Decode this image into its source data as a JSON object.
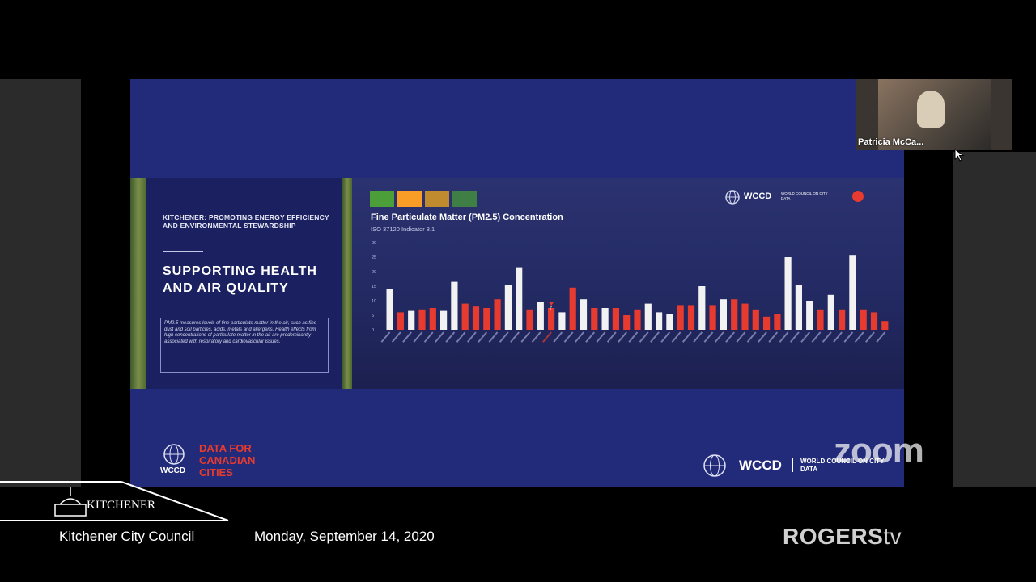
{
  "slide": {
    "kicker": "KITCHENER: PROMOTING ENERGY EFFICIENCY AND ENVIRONMENTAL STEWARDSHIP",
    "headline": "SUPPORTING HEALTH AND AIR QUALITY",
    "description": "PM2.5 measures levels of fine particulate matter in the air, such as fine dust and soil particles, acids, metals and allergens. Health effects from high concentrations of particulate matter in the air are predominantly associated with respiratory and cardiovascular issues.",
    "footer_left_brand": "WCCD",
    "footer_left_title": "DATA FOR CANADIAN CITIES",
    "footer_right_brand": "WCCD",
    "footer_right_title": "WORLD COUNCIL ON CITY DATA",
    "top_right_brand": "WCCD",
    "top_right_title": "WORLD COUNCIL ON CITY DATA",
    "sdg_icons": [
      "sdg-3-icon",
      "sdg-11-icon",
      "sdg-12-icon",
      "sdg-13-icon"
    ]
  },
  "chart_data": {
    "type": "bar",
    "title": "Fine Particulate Matter (PM2.5) Concentration",
    "subtitle": "ISO 37120 Indicator 8.1",
    "ylim": [
      0,
      30
    ],
    "yticks": [
      0,
      5,
      10,
      15,
      20,
      25,
      30
    ],
    "highlight_index": 15,
    "highlight_marker": "7",
    "series": [
      {
        "values": [
          14,
          6,
          6.5,
          7,
          7.5,
          6.5,
          16.5,
          9,
          8,
          7.5,
          10.5,
          15.5,
          21.5,
          7,
          9.5,
          7.5,
          6,
          14.5,
          10.5,
          7.5,
          7.5,
          7.5,
          5,
          7,
          9,
          6,
          5.5,
          8.5,
          8.5,
          15,
          8.5,
          10.5,
          10.5,
          9,
          7,
          4.5,
          5.5,
          25,
          15.5,
          10,
          7,
          12,
          7,
          25.5,
          7,
          6,
          3
        ],
        "colors": [
          "w",
          "r",
          "w",
          "r",
          "r",
          "w",
          "w",
          "r",
          "r",
          "r",
          "r",
          "w",
          "w",
          "r",
          "w",
          "r",
          "w",
          "r",
          "w",
          "r",
          "w",
          "r",
          "r",
          "r",
          "w",
          "w",
          "w",
          "r",
          "r",
          "w",
          "r",
          "w",
          "r",
          "r",
          "r",
          "r",
          "r",
          "w",
          "w",
          "w",
          "r",
          "w",
          "r",
          "w",
          "r",
          "r",
          "r"
        ]
      }
    ],
    "colors": {
      "white": "#f2f2f2",
      "red": "#e63b2e"
    }
  },
  "video": {
    "participant_name": "Patricia McCa..."
  },
  "broadcast": {
    "zoom_watermark": "zoom",
    "city_logo_text": "KITCHENER",
    "council_name": "Kitchener City Council",
    "meeting_date": "Monday, September 14, 2020",
    "network": "ROGERS",
    "network_suffix": "tv"
  }
}
